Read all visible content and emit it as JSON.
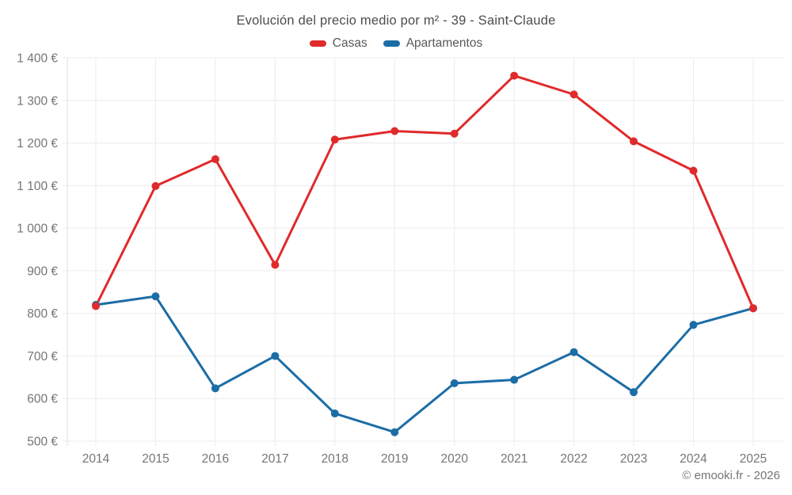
{
  "footer_credit": "© emooki.fr - 2026",
  "chart_data": {
    "type": "line",
    "title": "Evolución del precio medio por m² - 39 - Saint-Claude",
    "xlabel": "",
    "ylabel": "",
    "categories": [
      "2014",
      "2015",
      "2016",
      "2017",
      "2018",
      "2019",
      "2020",
      "2021",
      "2022",
      "2023",
      "2024",
      "2025"
    ],
    "series": [
      {
        "name": "Casas",
        "color": "#e02a2b",
        "values": [
          817,
          1099,
          1162,
          914,
          1208,
          1228,
          1222,
          1358,
          1314,
          1204,
          1135,
          812
        ]
      },
      {
        "name": "Apartamentos",
        "color": "#1b6da5",
        "values": [
          820,
          840,
          624,
          700,
          565,
          521,
          636,
          644,
          709,
          615,
          773,
          812
        ]
      }
    ],
    "ylim": [
      500,
      1400
    ],
    "y_ticks": [
      {
        "value": 500,
        "label": "500 €"
      },
      {
        "value": 600,
        "label": "600 €"
      },
      {
        "value": 700,
        "label": "700 €"
      },
      {
        "value": 800,
        "label": "800 €"
      },
      {
        "value": 900,
        "label": "900 €"
      },
      {
        "value": 1000,
        "label": "1 000 €"
      },
      {
        "value": 1100,
        "label": "1 100 €"
      },
      {
        "value": 1200,
        "label": "1 200 €"
      },
      {
        "value": 1300,
        "label": "1 300 €"
      },
      {
        "value": 1400,
        "label": "1 400 €"
      }
    ],
    "grid": true,
    "legend_position": "top",
    "currency": "€"
  },
  "colors": {
    "grid": "#ececec",
    "axis": "#e0e0e0",
    "tick_text": "#757575",
    "title_text": "#4d4d4d",
    "legend_text": "#595959",
    "background": "#ffffff"
  }
}
